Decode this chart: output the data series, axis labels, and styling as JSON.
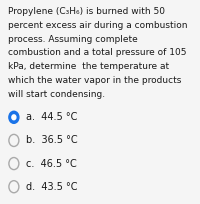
{
  "question_text": [
    "Propylene (C₃H₆) is burned with 50",
    "percent excess air during a combustion",
    "process. Assuming complete",
    "combustion and a total pressure of 105",
    "kPa, determine  the temperature at",
    "which the water vapor in the products",
    "will start condensing."
  ],
  "options": [
    {
      "label": "a.",
      "value": "44.5 °C",
      "selected": true
    },
    {
      "label": "b.",
      "value": "36.5 °C",
      "selected": false
    },
    {
      "label": "c.",
      "value": "46.5 °C",
      "selected": false
    },
    {
      "label": "d.",
      "value": "43.5 °C",
      "selected": false
    }
  ],
  "bg_color": "#f5f5f5",
  "text_color": "#1a1a1a",
  "selected_color": "#1a73e8",
  "unselected_color": "#aaaaaa",
  "font_size": 6.5,
  "option_font_size": 7.0
}
